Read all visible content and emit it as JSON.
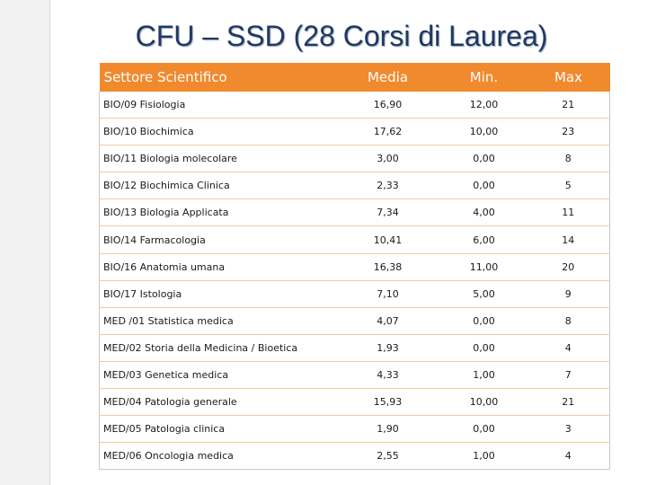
{
  "title": "CFU – SSD (28 Corsi di Laurea)",
  "accent_color": "#f08a2d",
  "title_color": "#1f3864",
  "table": {
    "headers": [
      "Settore Scientifico",
      "Media",
      "Min.",
      "Max"
    ],
    "rows": [
      [
        "BIO/09 Fisiologia",
        "16,90",
        "12,00",
        "21"
      ],
      [
        "BIO/10 Biochimica",
        "17,62",
        "10,00",
        "23"
      ],
      [
        "BIO/11 Biologia molecolare",
        "3,00",
        "0,00",
        "8"
      ],
      [
        "BIO/12 Biochimica Clinica",
        "2,33",
        "0,00",
        "5"
      ],
      [
        "BIO/13 Biologia Applicata",
        "7,34",
        "4,00",
        "11"
      ],
      [
        "BIO/14 Farmacologia",
        "10,41",
        "6,00",
        "14"
      ],
      [
        "BIO/16  Anatomia umana",
        "16,38",
        "11,00",
        "20"
      ],
      [
        "BIO/17 Istologia",
        "7,10",
        "5,00",
        "9"
      ],
      [
        "MED /01 Statistica medica",
        "4,07",
        "0,00",
        "8"
      ],
      [
        "MED/02 Storia della Medicina / Bioetica",
        "1,93",
        "0,00",
        "4"
      ],
      [
        "MED/03 Genetica medica",
        "4,33",
        "1,00",
        "7"
      ],
      [
        "MED/04 Patologia generale",
        "15,93",
        "10,00",
        "21"
      ],
      [
        "MED/05 Patologia clinica",
        "1,90",
        "0,00",
        "3"
      ],
      [
        "MED/06 Oncologia medica",
        "2,55",
        "1,00",
        "4"
      ]
    ]
  }
}
